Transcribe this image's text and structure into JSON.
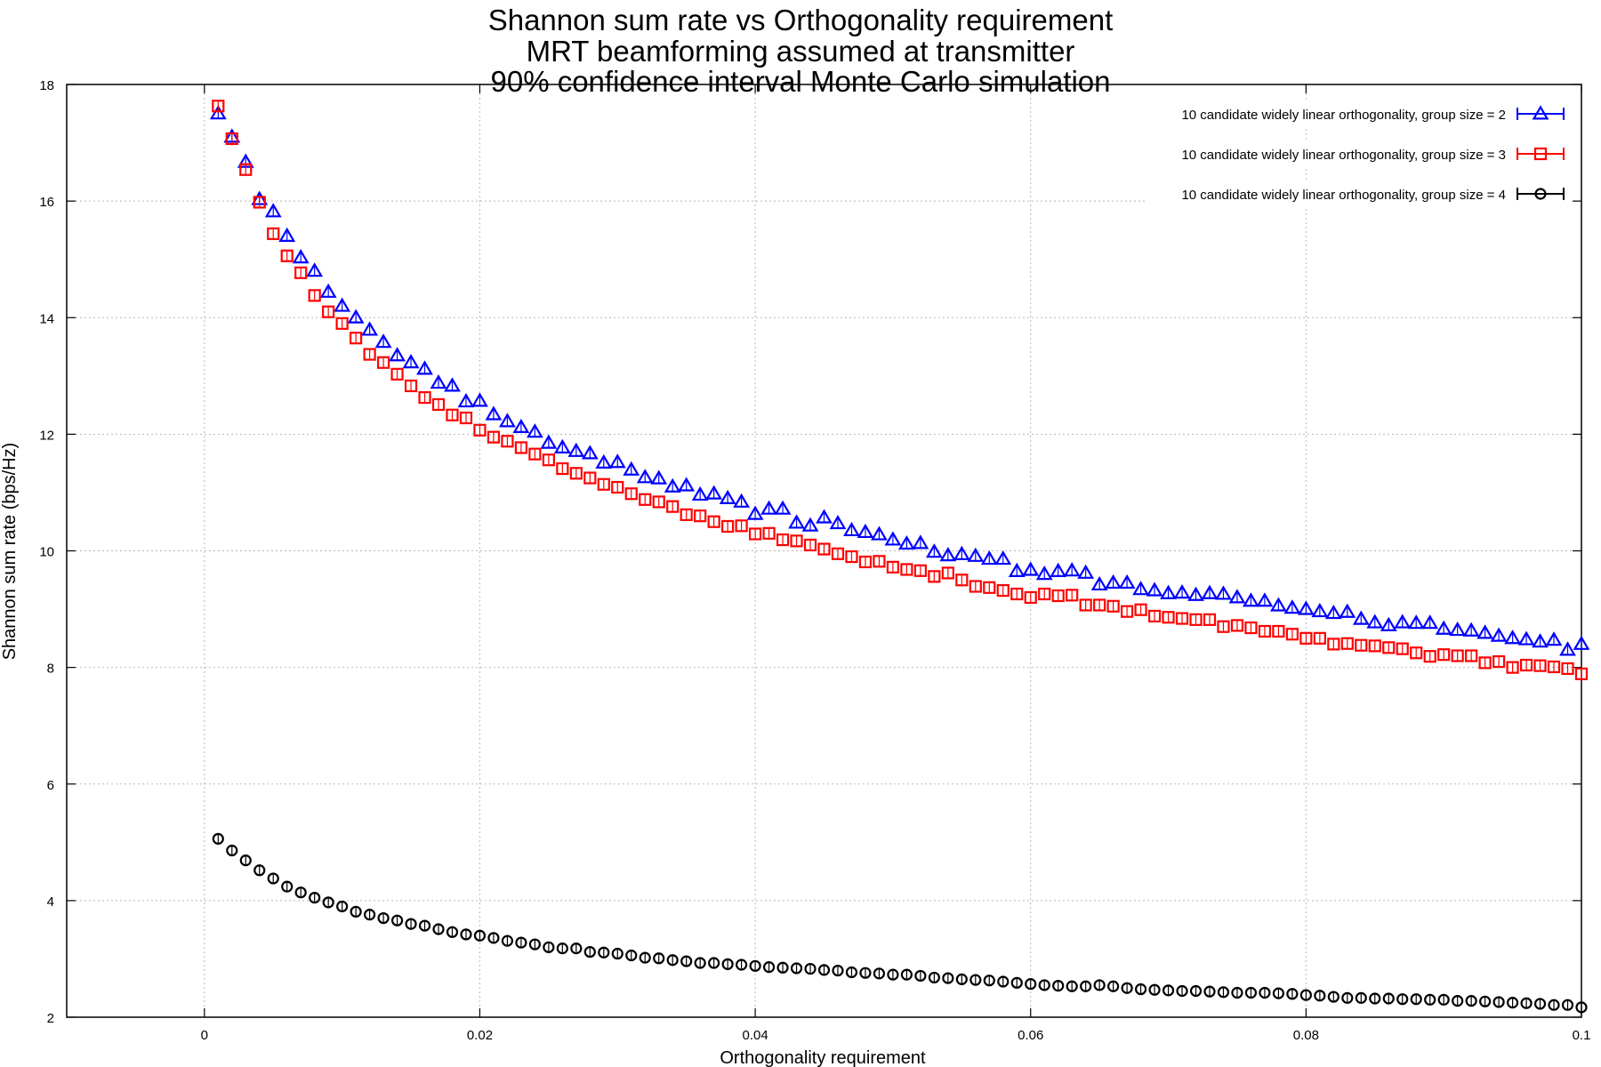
{
  "chart_data": {
    "type": "scatter",
    "title": [
      "Shannon sum rate vs Orthogonality requirement",
      "MRT beamforming assumed at transmitter",
      "90% confidence interval Monte Carlo simulation"
    ],
    "xlabel": "Orthogonality requirement",
    "ylabel": "Shannon sum rate (bps/Hz)",
    "xlim": [
      -0.01,
      0.1
    ],
    "ylim": [
      2,
      18
    ],
    "x_ticks": [
      0,
      0.02,
      0.04,
      0.06,
      0.08,
      0.1
    ],
    "x_tick_labels": [
      "0",
      "0.02",
      "0.04",
      "0.06",
      "0.08",
      "0.1"
    ],
    "y_ticks": [
      2,
      4,
      6,
      8,
      10,
      12,
      14,
      16,
      18
    ],
    "y_tick_labels": [
      "2",
      "4",
      "6",
      "8",
      "10",
      "12",
      "14",
      "16",
      "18"
    ],
    "grid": true,
    "legend_position": "top-right",
    "x": [
      0.001,
      0.002,
      0.003,
      0.004,
      0.005,
      0.006,
      0.007,
      0.008,
      0.009,
      0.01,
      0.011,
      0.012,
      0.013,
      0.014,
      0.015,
      0.016,
      0.017,
      0.018,
      0.019,
      0.02,
      0.021,
      0.022,
      0.023,
      0.024,
      0.025,
      0.026,
      0.027,
      0.028,
      0.029,
      0.03,
      0.031,
      0.032,
      0.033,
      0.034,
      0.035,
      0.036,
      0.037,
      0.038,
      0.039,
      0.04,
      0.041,
      0.042,
      0.043,
      0.044,
      0.045,
      0.046,
      0.047,
      0.048,
      0.049,
      0.05,
      0.051,
      0.052,
      0.053,
      0.054,
      0.055,
      0.056,
      0.057,
      0.058,
      0.059,
      0.06,
      0.061,
      0.062,
      0.063,
      0.064,
      0.065,
      0.066,
      0.067,
      0.068,
      0.069,
      0.07,
      0.071,
      0.072,
      0.073,
      0.074,
      0.075,
      0.076,
      0.077,
      0.078,
      0.079,
      0.08,
      0.081,
      0.082,
      0.083,
      0.084,
      0.085,
      0.086,
      0.087,
      0.088,
      0.089,
      0.09,
      0.091,
      0.092,
      0.093,
      0.094,
      0.095,
      0.096,
      0.097,
      0.098,
      0.099,
      0.1
    ],
    "series": [
      {
        "name": "10 candidate widely linear orthogonality, group size = 2",
        "color": "#0000ff",
        "marker": "triangle",
        "values": [
          17.5,
          17.1,
          16.67,
          16.03,
          15.82,
          15.4,
          15.03,
          14.8,
          14.44,
          14.2,
          14.0,
          13.79,
          13.58,
          13.35,
          13.23,
          13.12,
          12.88,
          12.83,
          12.56,
          12.57,
          12.34,
          12.22,
          12.12,
          12.04,
          11.85,
          11.77,
          11.71,
          11.67,
          11.51,
          11.52,
          11.39,
          11.26,
          11.24,
          11.1,
          11.12,
          10.96,
          10.98,
          10.9,
          10.84,
          10.63,
          10.72,
          10.72,
          10.48,
          10.43,
          10.57,
          10.47,
          10.35,
          10.32,
          10.28,
          10.19,
          10.12,
          10.13,
          9.98,
          9.92,
          9.94,
          9.91,
          9.86,
          9.86,
          9.65,
          9.67,
          9.6,
          9.65,
          9.66,
          9.62,
          9.42,
          9.45,
          9.45,
          9.34,
          9.32,
          9.27,
          9.28,
          9.24,
          9.27,
          9.26,
          9.2,
          9.14,
          9.14,
          9.06,
          9.02,
          9.0,
          8.96,
          8.93,
          8.95,
          8.83,
          8.77,
          8.72,
          8.77,
          8.76,
          8.76,
          8.66,
          8.64,
          8.63,
          8.59,
          8.54,
          8.5,
          8.48,
          8.44,
          8.47,
          8.3,
          8.4
        ]
      },
      {
        "name": "10 candidate widely linear orthogonality, group size = 3",
        "color": "#ff0000",
        "marker": "square",
        "values": [
          17.63,
          17.07,
          16.54,
          15.98,
          15.44,
          15.06,
          14.77,
          14.38,
          14.1,
          13.9,
          13.65,
          13.37,
          13.23,
          13.03,
          12.83,
          12.63,
          12.51,
          12.33,
          12.28,
          12.07,
          11.95,
          11.88,
          11.77,
          11.66,
          11.56,
          11.41,
          11.33,
          11.25,
          11.14,
          11.09,
          10.98,
          10.88,
          10.84,
          10.76,
          10.62,
          10.6,
          10.5,
          10.42,
          10.43,
          10.29,
          10.3,
          10.19,
          10.17,
          10.1,
          10.03,
          9.95,
          9.9,
          9.81,
          9.82,
          9.72,
          9.68,
          9.66,
          9.56,
          9.62,
          9.5,
          9.39,
          9.37,
          9.32,
          9.26,
          9.2,
          9.26,
          9.23,
          9.24,
          9.07,
          9.07,
          9.05,
          8.96,
          8.99,
          8.88,
          8.86,
          8.84,
          8.82,
          8.82,
          8.7,
          8.72,
          8.68,
          8.62,
          8.62,
          8.57,
          8.5,
          8.5,
          8.4,
          8.41,
          8.38,
          8.37,
          8.34,
          8.32,
          8.25,
          8.19,
          8.22,
          8.2,
          8.2,
          8.08,
          8.1,
          8.0,
          8.04,
          8.03,
          8.01,
          7.98,
          7.89
        ]
      },
      {
        "name": "10 candidate widely linear orthogonality, group size = 4",
        "color": "#000000",
        "marker": "circle",
        "values": [
          5.06,
          4.86,
          4.69,
          4.52,
          4.38,
          4.24,
          4.14,
          4.05,
          3.97,
          3.9,
          3.81,
          3.76,
          3.7,
          3.66,
          3.6,
          3.57,
          3.51,
          3.46,
          3.42,
          3.4,
          3.36,
          3.31,
          3.28,
          3.25,
          3.2,
          3.18,
          3.18,
          3.12,
          3.11,
          3.09,
          3.06,
          3.02,
          3.01,
          2.98,
          2.96,
          2.93,
          2.93,
          2.91,
          2.9,
          2.88,
          2.86,
          2.85,
          2.84,
          2.83,
          2.81,
          2.8,
          2.77,
          2.76,
          2.75,
          2.73,
          2.73,
          2.71,
          2.68,
          2.67,
          2.65,
          2.64,
          2.63,
          2.61,
          2.59,
          2.57,
          2.55,
          2.54,
          2.53,
          2.53,
          2.55,
          2.53,
          2.5,
          2.48,
          2.47,
          2.46,
          2.45,
          2.45,
          2.44,
          2.43,
          2.42,
          2.42,
          2.42,
          2.41,
          2.4,
          2.38,
          2.37,
          2.35,
          2.33,
          2.33,
          2.32,
          2.32,
          2.31,
          2.31,
          2.3,
          2.3,
          2.28,
          2.28,
          2.27,
          2.26,
          2.25,
          2.24,
          2.23,
          2.21,
          2.21,
          2.17
        ]
      }
    ]
  }
}
